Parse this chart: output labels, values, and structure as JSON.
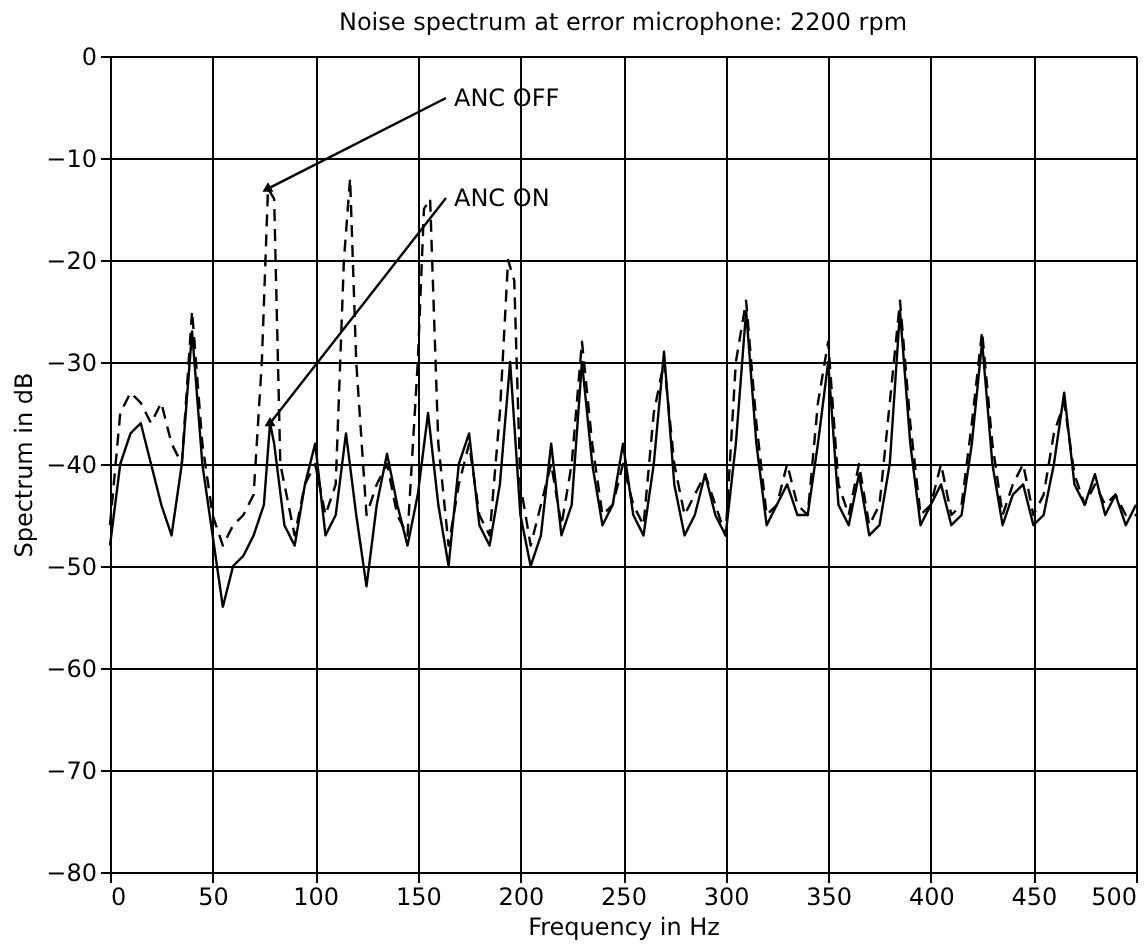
{
  "chart_data": {
    "type": "line",
    "title": "Noise spectrum at error microphone: 2200 rpm",
    "xlabel": "Frequency in Hz",
    "ylabel": "Spectrum in dB",
    "xlim": [
      0,
      500
    ],
    "xticks": [
      0,
      50,
      100,
      150,
      200,
      250,
      300,
      350,
      400,
      450,
      500
    ],
    "ylim": [
      -80,
      0
    ],
    "yticks": [
      -80,
      -70,
      -60,
      -50,
      -40,
      -30,
      -20,
      -10,
      0
    ],
    "grid": true,
    "marker": "none",
    "annotations": [
      {
        "text": "ANC OFF",
        "x": 77,
        "y": -13
      },
      {
        "text": "ANC ON",
        "x": 78,
        "y": -36
      }
    ],
    "series": [
      {
        "color": "#000000",
        "line_style": "dashed",
        "x": [
          0,
          5,
          10,
          15,
          20,
          25,
          30,
          35,
          40,
          45,
          50,
          55,
          60,
          65,
          70,
          74,
          77,
          80,
          83,
          90,
          95,
          100,
          105,
          110,
          114,
          117,
          120,
          125,
          130,
          135,
          140,
          145,
          150,
          153,
          156,
          160,
          165,
          170,
          175,
          180,
          185,
          190,
          194,
          197,
          200,
          205,
          210,
          215,
          220,
          225,
          230,
          235,
          240,
          245,
          250,
          255,
          260,
          265,
          270,
          275,
          280,
          285,
          290,
          295,
          300,
          305,
          310,
          315,
          320,
          325,
          330,
          335,
          340,
          345,
          350,
          355,
          360,
          365,
          370,
          375,
          380,
          385,
          390,
          395,
          400,
          405,
          410,
          415,
          420,
          425,
          430,
          435,
          440,
          445,
          450,
          455,
          460,
          465,
          470,
          475,
          480,
          485,
          490,
          495,
          500
        ],
        "values": [
          -46,
          -35,
          -33,
          -34,
          -36,
          -34,
          -38,
          -40,
          -25,
          -38,
          -45,
          -48,
          -46,
          -45,
          -43,
          -30,
          -13,
          -14,
          -40,
          -47,
          -42,
          -40,
          -45,
          -42,
          -20,
          -12,
          -30,
          -45,
          -42,
          -40,
          -45,
          -47,
          -30,
          -15,
          -14,
          -38,
          -48,
          -42,
          -38,
          -45,
          -47,
          -35,
          -20,
          -22,
          -42,
          -48,
          -44,
          -40,
          -46,
          -40,
          -28,
          -38,
          -45,
          -44,
          -40,
          -44,
          -46,
          -35,
          -30,
          -40,
          -45,
          -43,
          -41,
          -44,
          -47,
          -30,
          -24,
          -36,
          -45,
          -44,
          -40,
          -44,
          -45,
          -34,
          -28,
          -42,
          -45,
          -40,
          -46,
          -44,
          -34,
          -24,
          -36,
          -45,
          -44,
          -40,
          -45,
          -44,
          -36,
          -27,
          -38,
          -45,
          -42,
          -40,
          -45,
          -43,
          -37,
          -34,
          -41,
          -44,
          -42,
          -44,
          -43,
          -45,
          -45
        ]
      },
      {
        "color": "#000000",
        "line_style": "solid",
        "x": [
          0,
          5,
          10,
          15,
          20,
          25,
          30,
          35,
          40,
          45,
          50,
          55,
          60,
          65,
          70,
          75,
          78,
          80,
          85,
          90,
          95,
          100,
          105,
          110,
          115,
          120,
          125,
          130,
          135,
          140,
          145,
          150,
          155,
          160,
          165,
          170,
          175,
          180,
          185,
          190,
          195,
          200,
          205,
          210,
          215,
          220,
          225,
          230,
          235,
          240,
          245,
          250,
          255,
          260,
          265,
          270,
          275,
          280,
          285,
          290,
          295,
          300,
          305,
          310,
          315,
          320,
          325,
          330,
          335,
          340,
          345,
          350,
          355,
          360,
          365,
          370,
          375,
          380,
          385,
          390,
          395,
          400,
          405,
          410,
          415,
          420,
          425,
          430,
          435,
          440,
          445,
          450,
          455,
          460,
          465,
          470,
          475,
          480,
          485,
          490,
          495,
          500
        ],
        "values": [
          -48,
          -40,
          -37,
          -36,
          -40,
          -44,
          -47,
          -40,
          -27,
          -40,
          -47,
          -54,
          -50,
          -49,
          -47,
          -44,
          -36,
          -38,
          -46,
          -48,
          -42,
          -38,
          -47,
          -45,
          -37,
          -45,
          -52,
          -44,
          -39,
          -44,
          -48,
          -43,
          -35,
          -44,
          -50,
          -40,
          -37,
          -46,
          -48,
          -42,
          -30,
          -45,
          -50,
          -47,
          -38,
          -47,
          -44,
          -30,
          -40,
          -46,
          -44,
          -38,
          -45,
          -47,
          -40,
          -29,
          -42,
          -47,
          -45,
          -41,
          -45,
          -47,
          -38,
          -25,
          -38,
          -46,
          -44,
          -42,
          -45,
          -45,
          -38,
          -30,
          -44,
          -46,
          -41,
          -47,
          -46,
          -40,
          -25,
          -38,
          -46,
          -44,
          -42,
          -46,
          -45,
          -38,
          -28,
          -40,
          -46,
          -43,
          -42,
          -46,
          -45,
          -40,
          -33,
          -42,
          -44,
          -41,
          -45,
          -43,
          -46,
          -44
        ]
      }
    ]
  }
}
